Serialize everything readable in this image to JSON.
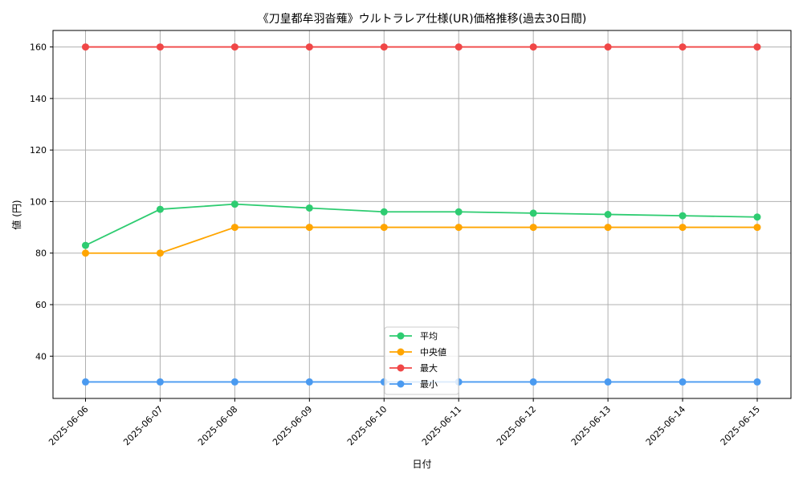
{
  "chart_data": {
    "type": "line",
    "title": "《刀皇都牟羽沓薙》ウルトラレア仕様(UR)価格推移(過去30日間)",
    "xlabel": "日付",
    "ylabel": "値 (円)",
    "categories": [
      "2025-06-06",
      "2025-06-07",
      "2025-06-08",
      "2025-06-09",
      "2025-06-10",
      "2025-06-11",
      "2025-06-12",
      "2025-06-13",
      "2025-06-14",
      "2025-06-15"
    ],
    "ylim": [
      23.6,
      166.4
    ],
    "yticks": [
      40,
      60,
      80,
      100,
      120,
      140,
      160
    ],
    "grid": true,
    "legend_position": "bottom-center",
    "series": [
      {
        "name": "平均",
        "color": "#2ecc71",
        "values": [
          83,
          97,
          99,
          97.5,
          96,
          96,
          95.5,
          95,
          94.5,
          94
        ]
      },
      {
        "name": "中央値",
        "color": "#ffa500",
        "values": [
          80,
          80,
          90,
          90,
          90,
          90,
          90,
          90,
          90,
          90
        ]
      },
      {
        "name": "最大",
        "color": "#f04747",
        "values": [
          160,
          160,
          160,
          160,
          160,
          160,
          160,
          160,
          160,
          160
        ]
      },
      {
        "name": "最小",
        "color": "#4a9af0",
        "values": [
          30,
          30,
          30,
          30,
          30,
          30,
          30,
          30,
          30,
          30
        ]
      }
    ]
  }
}
